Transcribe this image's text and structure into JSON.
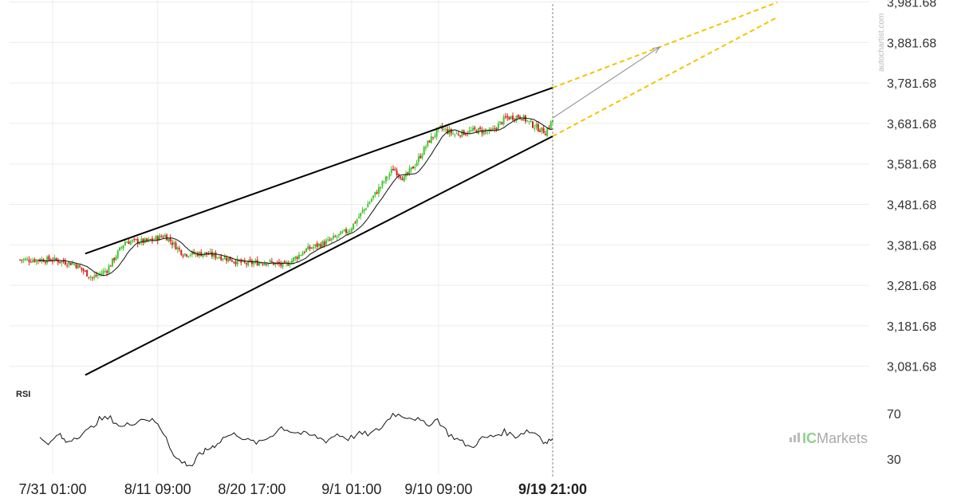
{
  "chart_data": [
    {
      "type": "candlestick",
      "y_ticks": [
        "3,981.68",
        "3,881.68",
        "3,781.68",
        "3,681.68",
        "3,581.68",
        "3,481.68",
        "3,381.68",
        "3,281.68",
        "3,181.68",
        "3,081.68"
      ],
      "ylim": [
        3041.68,
        3986.68
      ],
      "x_labels": [
        "7/31 01:00",
        "8/11 09:00",
        "8/20 17:00",
        "9/1 01:00",
        "9/10 09:00",
        "9/19 21:00"
      ],
      "x_label_index": [
        0,
        58,
        110,
        165,
        213,
        276
      ],
      "last_index": 276,
      "grid": true,
      "approx_closes": [
        {
          "i": 0,
          "v": 3345
        },
        {
          "i": 12,
          "v": 3335
        },
        {
          "i": 22,
          "v": 3300
        },
        {
          "i": 30,
          "v": 3320
        },
        {
          "i": 40,
          "v": 3390
        },
        {
          "i": 52,
          "v": 3390
        },
        {
          "i": 62,
          "v": 3405
        },
        {
          "i": 72,
          "v": 3360
        },
        {
          "i": 84,
          "v": 3360
        },
        {
          "i": 95,
          "v": 3350
        },
        {
          "i": 106,
          "v": 3335
        },
        {
          "i": 118,
          "v": 3340
        },
        {
          "i": 128,
          "v": 3330
        },
        {
          "i": 140,
          "v": 3370
        },
        {
          "i": 152,
          "v": 3390
        },
        {
          "i": 164,
          "v": 3420
        },
        {
          "i": 172,
          "v": 3470
        },
        {
          "i": 180,
          "v": 3520
        },
        {
          "i": 188,
          "v": 3570
        },
        {
          "i": 194,
          "v": 3545
        },
        {
          "i": 200,
          "v": 3580
        },
        {
          "i": 208,
          "v": 3640
        },
        {
          "i": 214,
          "v": 3670
        },
        {
          "i": 222,
          "v": 3655
        },
        {
          "i": 234,
          "v": 3665
        },
        {
          "i": 242,
          "v": 3660
        },
        {
          "i": 250,
          "v": 3695
        },
        {
          "i": 258,
          "v": 3700
        },
        {
          "i": 266,
          "v": 3675
        },
        {
          "i": 272,
          "v": 3660
        },
        {
          "i": 276,
          "v": 3690
        }
      ],
      "pattern": {
        "name": "Rising Wedge",
        "upper_line": [
          {
            "i": 18,
            "v": 3360
          },
          {
            "i": 276,
            "v": 3770
          }
        ],
        "lower_line": [
          {
            "i": 18,
            "v": 3060
          },
          {
            "i": 276,
            "v": 3650
          }
        ],
        "projection_upper": [
          {
            "i": 276,
            "v": 3770
          },
          {
            "i": 400,
            "v": 3981
          }
        ],
        "projection_lower": [
          {
            "i": 276,
            "v": 3650
          },
          {
            "i": 400,
            "v": 3944
          }
        ],
        "forecast_arrow": [
          {
            "i": 276,
            "v": 3695
          },
          {
            "i": 335,
            "v": 3870
          }
        ]
      },
      "colors": {
        "up": "#44c62e",
        "down": "#d9221c",
        "wedge": "#000000",
        "projection": "#f5c400",
        "arrow": "#8a8a8a",
        "ma": "#111111"
      }
    },
    {
      "type": "line",
      "title": "RSI",
      "y_ticks": [
        "70",
        "30"
      ],
      "ylim": [
        20,
        80
      ],
      "approx_values": [
        {
          "i": 0,
          "v": 48
        },
        {
          "i": 6,
          "v": 44
        },
        {
          "i": 10,
          "v": 52
        },
        {
          "i": 14,
          "v": 45
        },
        {
          "i": 20,
          "v": 50
        },
        {
          "i": 26,
          "v": 55
        },
        {
          "i": 32,
          "v": 65
        },
        {
          "i": 38,
          "v": 66
        },
        {
          "i": 44,
          "v": 58
        },
        {
          "i": 50,
          "v": 62
        },
        {
          "i": 56,
          "v": 66
        },
        {
          "i": 62,
          "v": 63
        },
        {
          "i": 68,
          "v": 50
        },
        {
          "i": 72,
          "v": 32
        },
        {
          "i": 78,
          "v": 26
        },
        {
          "i": 82,
          "v": 24
        },
        {
          "i": 86,
          "v": 34
        },
        {
          "i": 90,
          "v": 38
        },
        {
          "i": 94,
          "v": 42
        },
        {
          "i": 100,
          "v": 50
        },
        {
          "i": 106,
          "v": 52
        },
        {
          "i": 112,
          "v": 46
        },
        {
          "i": 118,
          "v": 44
        },
        {
          "i": 124,
          "v": 50
        },
        {
          "i": 130,
          "v": 58
        },
        {
          "i": 136,
          "v": 54
        },
        {
          "i": 142,
          "v": 52
        },
        {
          "i": 148,
          "v": 50
        },
        {
          "i": 154,
          "v": 46
        },
        {
          "i": 160,
          "v": 52
        },
        {
          "i": 166,
          "v": 48
        },
        {
          "i": 172,
          "v": 52
        },
        {
          "i": 178,
          "v": 52
        },
        {
          "i": 184,
          "v": 58
        },
        {
          "i": 190,
          "v": 70
        },
        {
          "i": 196,
          "v": 68
        },
        {
          "i": 202,
          "v": 66
        },
        {
          "i": 208,
          "v": 60
        },
        {
          "i": 214,
          "v": 65
        },
        {
          "i": 220,
          "v": 52
        },
        {
          "i": 226,
          "v": 46
        },
        {
          "i": 232,
          "v": 40
        },
        {
          "i": 238,
          "v": 48
        },
        {
          "i": 244,
          "v": 50
        },
        {
          "i": 250,
          "v": 54
        },
        {
          "i": 256,
          "v": 50
        },
        {
          "i": 262,
          "v": 55
        },
        {
          "i": 268,
          "v": 52
        },
        {
          "i": 272,
          "v": 44
        },
        {
          "i": 276,
          "v": 48
        }
      ],
      "color": "#111111"
    }
  ],
  "branding": {
    "watermark": "autochartist.com",
    "logo_prefix": "IC",
    "logo_suffix": "Markets"
  }
}
